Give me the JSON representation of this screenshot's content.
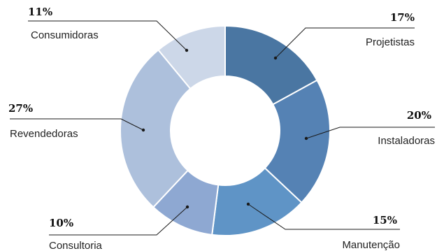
{
  "chart_data": {
    "type": "pie",
    "variant": "donut",
    "title": "",
    "slices": [
      {
        "label": "Projetistas",
        "value": 17,
        "display": "17%",
        "color": "#4a76a2"
      },
      {
        "label": "Instaladoras",
        "value": 20,
        "display": "20%",
        "color": "#5582b4"
      },
      {
        "label": "Manutenção",
        "value": 15,
        "display": "15%",
        "color": "#5f94c6"
      },
      {
        "label": "Consultoria",
        "value": 10,
        "display": "10%",
        "color": "#8ea8d2"
      },
      {
        "label": "Revendedoras",
        "value": 27,
        "display": "27%",
        "color": "#adc0dc"
      },
      {
        "label": "Consumidoras",
        "value": 11,
        "display": "11%",
        "color": "#ccd7e8"
      }
    ],
    "legend": "callouts"
  }
}
